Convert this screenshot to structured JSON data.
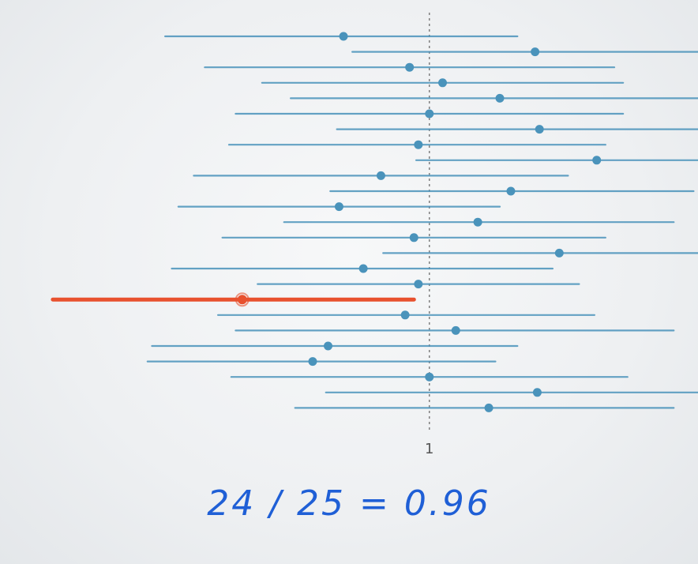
{
  "chart_data": {
    "type": "forest",
    "reference_value": 1,
    "reference_label": "1",
    "x_range": [
      -0.95,
      2.22
    ],
    "intervals": [
      {
        "lo": -0.2,
        "est": 0.61,
        "hi": 1.4,
        "covers": true
      },
      {
        "lo": 0.65,
        "est": 1.48,
        "hi": 2.31,
        "covers": true
      },
      {
        "lo": -0.02,
        "est": 0.91,
        "hi": 1.84,
        "covers": true
      },
      {
        "lo": 0.24,
        "est": 1.06,
        "hi": 1.88,
        "covers": true
      },
      {
        "lo": 0.37,
        "est": 1.32,
        "hi": 2.27,
        "covers": true
      },
      {
        "lo": 0.12,
        "est": 1.0,
        "hi": 1.88,
        "covers": true
      },
      {
        "lo": 0.58,
        "est": 1.5,
        "hi": 2.41,
        "covers": true
      },
      {
        "lo": 0.09,
        "est": 0.95,
        "hi": 1.8,
        "covers": true
      },
      {
        "lo": 0.94,
        "est": 1.76,
        "hi": 2.59,
        "covers": true
      },
      {
        "lo": -0.07,
        "est": 0.78,
        "hi": 1.63,
        "covers": true
      },
      {
        "lo": 0.55,
        "est": 1.37,
        "hi": 2.2,
        "covers": true
      },
      {
        "lo": -0.14,
        "est": 0.59,
        "hi": 1.32,
        "covers": true
      },
      {
        "lo": 0.34,
        "est": 1.22,
        "hi": 2.11,
        "covers": true
      },
      {
        "lo": 0.06,
        "est": 0.93,
        "hi": 1.8,
        "covers": true
      },
      {
        "lo": 0.79,
        "est": 1.59,
        "hi": 2.38,
        "covers": true
      },
      {
        "lo": -0.17,
        "est": 0.7,
        "hi": 1.56,
        "covers": true
      },
      {
        "lo": 0.22,
        "est": 0.95,
        "hi": 1.68,
        "covers": true
      },
      {
        "lo": -0.71,
        "est": 0.15,
        "hi": 0.93,
        "covers": false
      },
      {
        "lo": 0.04,
        "est": 0.89,
        "hi": 1.75,
        "covers": true
      },
      {
        "lo": 0.12,
        "est": 1.12,
        "hi": 2.11,
        "covers": true
      },
      {
        "lo": -0.26,
        "est": 0.54,
        "hi": 1.4,
        "covers": true
      },
      {
        "lo": -0.28,
        "est": 0.47,
        "hi": 1.3,
        "covers": true
      },
      {
        "lo": 0.1,
        "est": 1.0,
        "hi": 1.9,
        "covers": true
      },
      {
        "lo": 0.53,
        "est": 1.49,
        "hi": 2.43,
        "covers": true
      },
      {
        "lo": 0.39,
        "est": 1.27,
        "hi": 2.11,
        "covers": true
      }
    ],
    "colors": {
      "covering": "#4a93bb",
      "missing": "#e8512e",
      "reference": "#777777"
    },
    "annotation": "24 / 25 = 0.96"
  }
}
